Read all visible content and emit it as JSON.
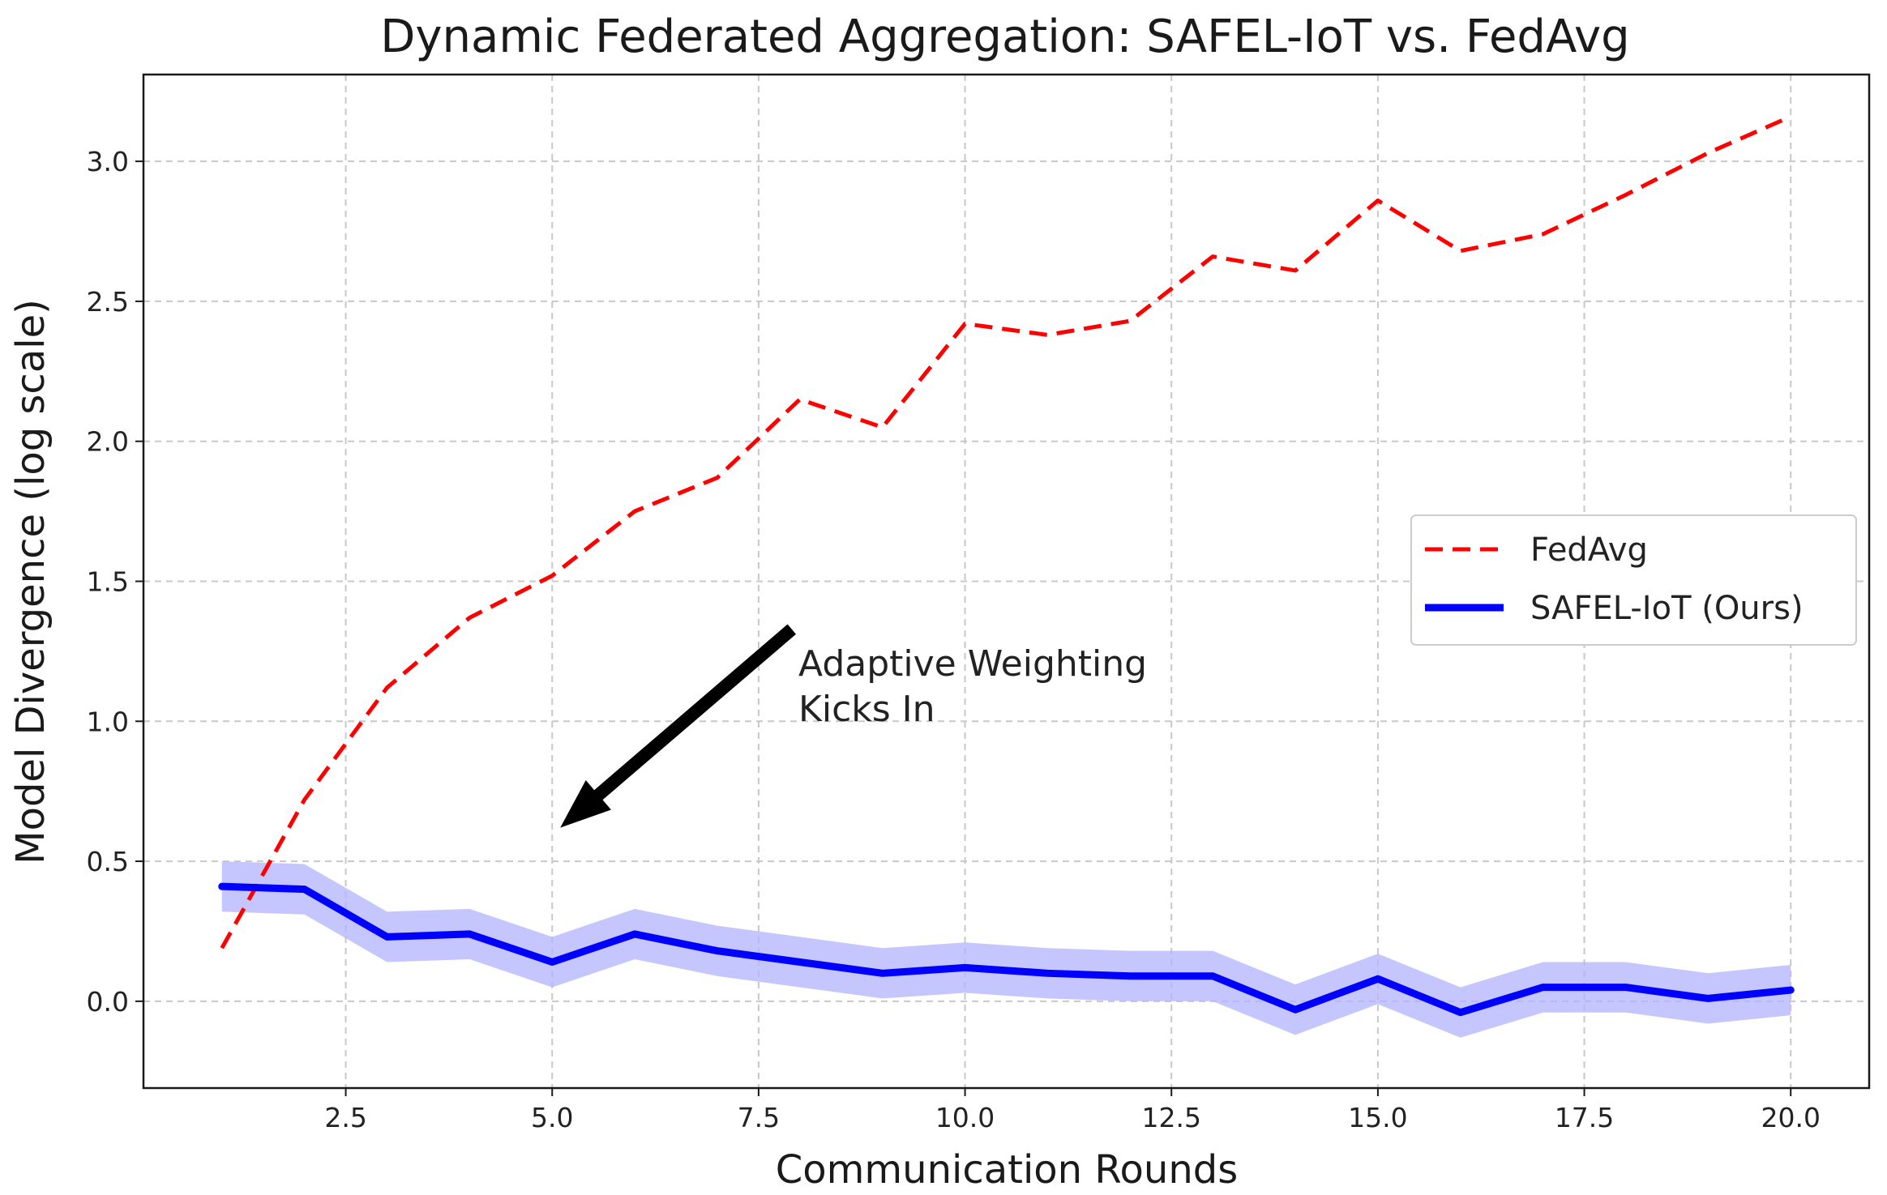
{
  "chart_data": {
    "type": "line",
    "title": "Dynamic Federated Aggregation: SAFEL-IoT vs. FedAvg",
    "xlabel": "Communication Rounds",
    "ylabel": "Model Divergence (log scale)",
    "xlim": [
      0.05,
      20.95
    ],
    "ylim": [
      -0.31,
      3.31
    ],
    "xticks": [
      2.5,
      5.0,
      7.5,
      10.0,
      12.5,
      15.0,
      17.5,
      20.0
    ],
    "xtick_labels": [
      "2.5",
      "5.0",
      "7.5",
      "10.0",
      "12.5",
      "15.0",
      "17.5",
      "20.0"
    ],
    "yticks": [
      0.0,
      0.5,
      1.0,
      1.5,
      2.0,
      2.5,
      3.0
    ],
    "ytick_labels": [
      "0.0",
      "0.5",
      "1.0",
      "1.5",
      "2.0",
      "2.5",
      "3.0"
    ],
    "grid": true,
    "legend_position": "center-right",
    "x": [
      1,
      2,
      3,
      4,
      5,
      6,
      7,
      8,
      9,
      10,
      11,
      12,
      13,
      14,
      15,
      16,
      17,
      18,
      19,
      20
    ],
    "series": [
      {
        "name": "FedAvg",
        "color": "#ff0000",
        "style": "dashed",
        "values": [
          0.19,
          0.72,
          1.12,
          1.37,
          1.52,
          1.75,
          1.87,
          2.15,
          2.05,
          2.42,
          2.38,
          2.43,
          2.66,
          2.61,
          2.86,
          2.68,
          2.74,
          2.88,
          3.03,
          3.16
        ]
      },
      {
        "name": "SAFEL-IoT (Ours)",
        "color": "#0000ff",
        "style": "solid",
        "values": [
          0.41,
          0.4,
          0.23,
          0.24,
          0.14,
          0.24,
          0.18,
          0.14,
          0.1,
          0.12,
          0.1,
          0.09,
          0.09,
          -0.03,
          0.08,
          -0.04,
          0.05,
          0.05,
          0.01,
          0.04
        ],
        "band": 0.09,
        "band_color": "#b3b3ff"
      }
    ],
    "annotation": {
      "text_lines": [
        "Adaptive Weighting",
        "Kicks In"
      ],
      "arrow_target": [
        5.0,
        0.62
      ],
      "text_anchor": [
        8.0,
        1.3
      ]
    }
  }
}
